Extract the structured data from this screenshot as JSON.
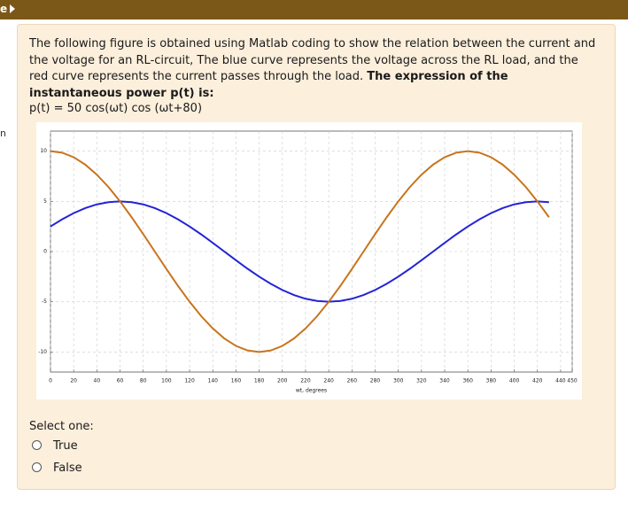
{
  "header": {
    "text": "e"
  },
  "side_fragment": "n",
  "question": {
    "text": "The following figure is obtained using Matlab coding to show the relation between the current and the voltage for an RL-circuit, The blue curve represents the voltage across the RL load, and the red curve represents the current passes through the load.",
    "bold_text": "The expression of the instantaneous power p(t) is:",
    "expression": "p(t)  =   50 cos(ωt) cos (ωt+80)"
  },
  "chart_data": {
    "type": "line",
    "x_label": "wt, degrees",
    "x": [
      0,
      10,
      20,
      30,
      40,
      50,
      60,
      70,
      80,
      90,
      100,
      110,
      120,
      130,
      140,
      150,
      160,
      170,
      180,
      190,
      200,
      210,
      220,
      230,
      240,
      250,
      260,
      270,
      280,
      290,
      300,
      310,
      320,
      330,
      340,
      350,
      360,
      370,
      380,
      390,
      400,
      410,
      420,
      430
    ],
    "series": [
      {
        "color": "#2323d8",
        "values": [
          2.5,
          3.21,
          3.83,
          4.33,
          4.7,
          4.92,
          5,
          4.92,
          4.7,
          4.33,
          3.83,
          3.21,
          2.5,
          1.71,
          0.87,
          0,
          -0.87,
          -1.71,
          -2.5,
          -3.21,
          -3.83,
          -4.33,
          -4.7,
          -4.92,
          -5,
          -4.92,
          -4.7,
          -4.33,
          -3.83,
          -3.21,
          -2.5,
          -1.71,
          -0.87,
          0,
          0.87,
          1.71,
          2.5,
          3.21,
          3.83,
          4.33,
          4.7,
          4.92,
          5,
          4.92
        ]
      },
      {
        "color": "#c8741c",
        "values": [
          10,
          9.85,
          9.4,
          8.66,
          7.66,
          6.43,
          5,
          3.42,
          1.74,
          0,
          -1.74,
          -3.42,
          -5,
          -6.43,
          -7.66,
          -8.66,
          -9.4,
          -9.85,
          -10,
          -9.85,
          -9.4,
          -8.66,
          -7.66,
          -6.43,
          -5,
          -3.42,
          -1.74,
          0,
          1.74,
          3.42,
          5,
          6.43,
          7.66,
          8.66,
          9.4,
          9.85,
          10,
          9.85,
          9.4,
          8.66,
          7.66,
          6.43,
          5,
          3.42
        ]
      }
    ],
    "xlim": [
      0,
      450
    ],
    "ylim": [
      -12,
      12
    ],
    "xticks": [
      0,
      20,
      40,
      60,
      80,
      100,
      120,
      140,
      160,
      180,
      200,
      220,
      240,
      260,
      280,
      300,
      320,
      340,
      360,
      380,
      400,
      420,
      440,
      450
    ],
    "yticks": [
      -10,
      -5,
      0,
      5,
      10
    ],
    "grid": true
  },
  "select_label": "Select one:",
  "options": [
    "True",
    "False"
  ]
}
